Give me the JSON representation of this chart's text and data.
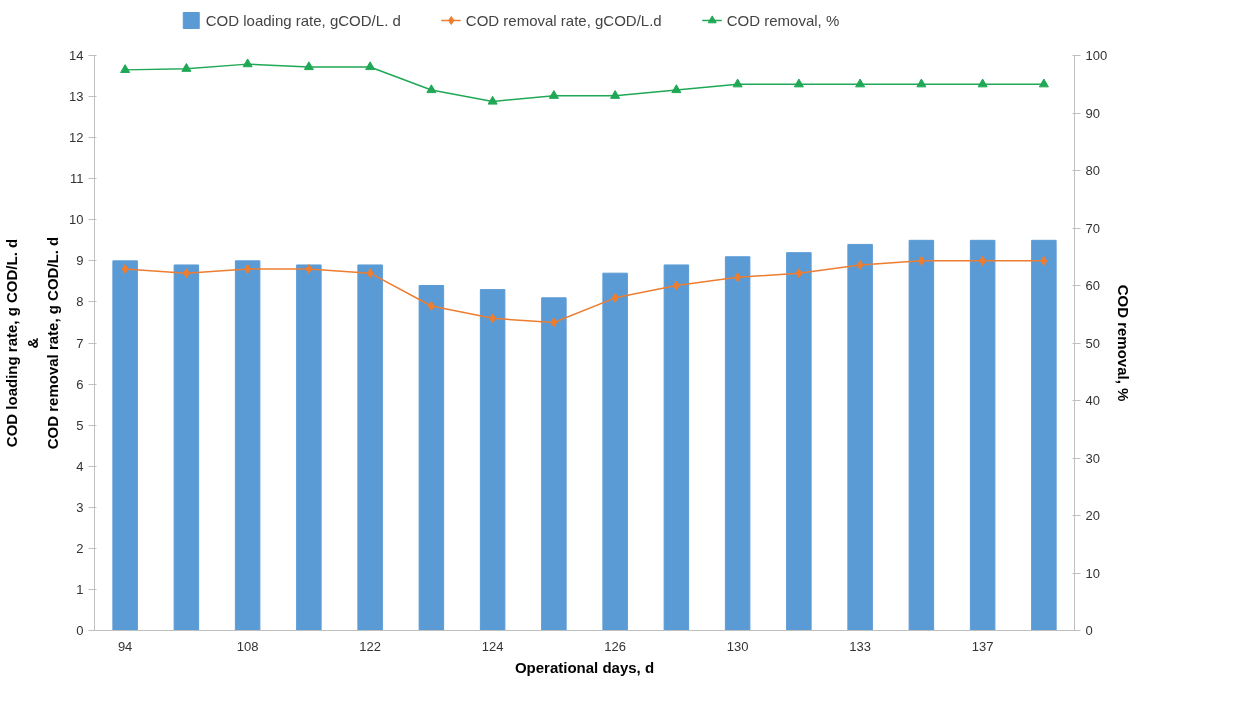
{
  "chart_data": {
    "type": "bar",
    "categories": [
      "94",
      null,
      "108",
      null,
      "122",
      null,
      "124",
      null,
      "126",
      null,
      "130",
      null,
      "133",
      null,
      "137",
      null
    ],
    "xlabel": "Operational days, d",
    "ylabel": "COD loading rate, g COD/L. d\n&\nCOD removal rate, g COD/L. d",
    "y2label": "COD removal, %",
    "ylim": [
      0,
      14
    ],
    "yticks": [
      0,
      1,
      2,
      3,
      4,
      5,
      6,
      7,
      8,
      9,
      10,
      11,
      12,
      13,
      14
    ],
    "y2lim": [
      0,
      100
    ],
    "y2ticks": [
      0,
      10,
      20,
      30,
      40,
      50,
      60,
      70,
      80,
      90,
      100
    ],
    "grid": false,
    "legend": "top",
    "series": [
      {
        "name": "COD loading rate, gCOD/L. d",
        "color": "#5b9bd5",
        "values": [
          9.0,
          8.9,
          9.0,
          8.9,
          8.9,
          8.4,
          8.3,
          8.1,
          8.7,
          8.9,
          9.1,
          9.2,
          9.4,
          9.5,
          9.5,
          9.5
        ]
      },
      {
        "name": "COD removal rate, gCOD/L.d",
        "type": "line",
        "marker": "diamond",
        "color": "#ed7d31",
        "values": [
          8.8,
          8.7,
          8.8,
          8.8,
          8.7,
          7.9,
          7.6,
          7.5,
          8.1,
          8.4,
          8.6,
          8.7,
          8.9,
          9.0,
          9.0,
          9.0
        ]
      },
      {
        "name": "COD removal, %",
        "type": "line",
        "marker": "triangle",
        "axis": "y2",
        "color": "#1fa855",
        "values": [
          97.5,
          97.7,
          98.5,
          98.0,
          98.0,
          94.0,
          92.0,
          93.0,
          93.0,
          94.0,
          95.0,
          95.0,
          95.0,
          95.0,
          95.0,
          95.0
        ]
      }
    ]
  }
}
